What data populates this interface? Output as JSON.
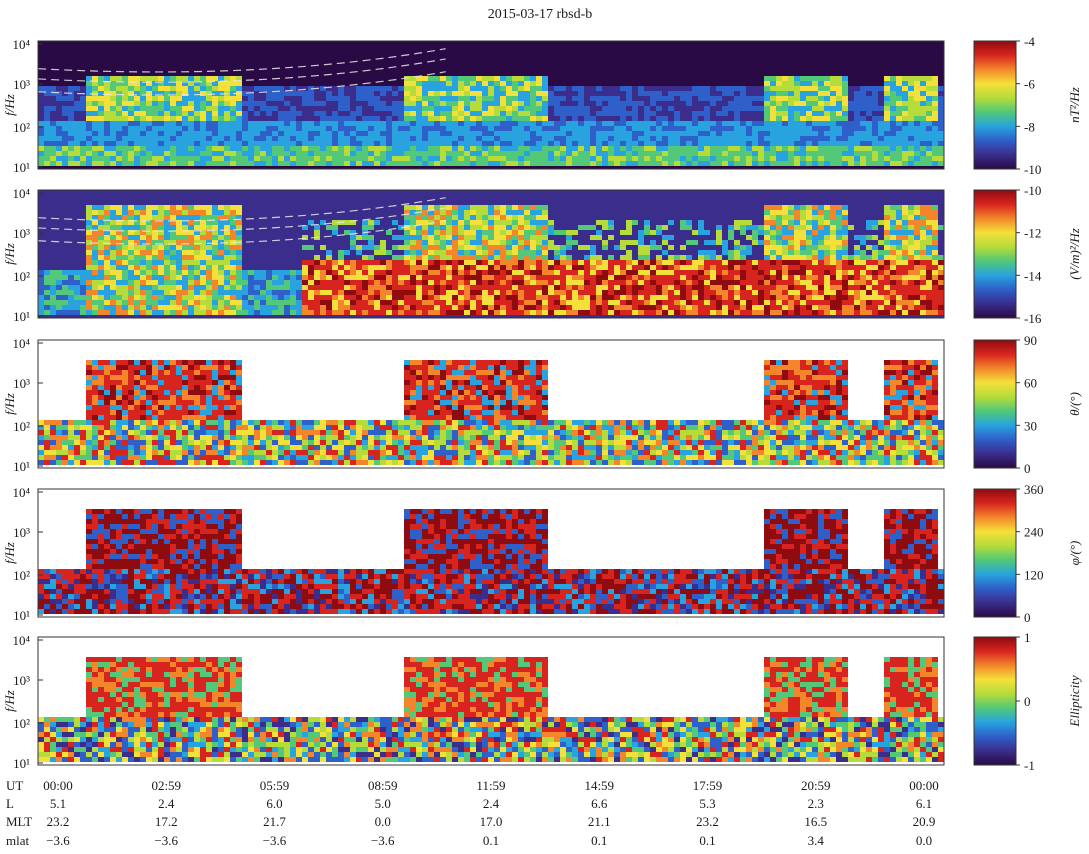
{
  "title": "2015-03-17  rbsd-b",
  "colors": {
    "colormap": [
      "#2a0a45",
      "#3a2d8c",
      "#2f5fc8",
      "#28a3df",
      "#52c878",
      "#b5dc3a",
      "#f4e03a",
      "#f3862a",
      "#d8241f",
      "#8e0b10"
    ]
  },
  "chart_data": [
    {
      "type": "heatmap",
      "panel": "spectral-power-magnetic",
      "ylabel": "f/Hz",
      "y_tick_labels": [
        "10⁴",
        "10³",
        "10²",
        "10¹"
      ],
      "y_range": [
        10,
        10000
      ],
      "y_scale": "log",
      "colorbar": {
        "label": "nT²/Hz",
        "ticks": [
          "-4",
          "-6",
          "-8",
          "-10"
        ],
        "range": [
          -10,
          -4
        ]
      },
      "frequency_overlays": "dashed electron gyrofrequency harmonics in upper band"
    },
    {
      "type": "heatmap",
      "panel": "spectral-power-electric",
      "ylabel": "f/Hz",
      "y_tick_labels": [
        "10⁴",
        "10³",
        "10²",
        "10¹"
      ],
      "y_range": [
        10,
        10000
      ],
      "y_scale": "log",
      "colorbar": {
        "label": "(V/m)²/Hz",
        "ticks": [
          "-10",
          "-12",
          "-14",
          "-16"
        ],
        "range": [
          -16,
          -10
        ]
      }
    },
    {
      "type": "heatmap",
      "panel": "wave-normal-angle",
      "ylabel": "f/Hz",
      "y_tick_labels": [
        "10⁴",
        "10³",
        "10²",
        "10¹"
      ],
      "y_range": [
        10,
        10000
      ],
      "y_scale": "log",
      "colorbar": {
        "label": "θ/(°)",
        "ticks": [
          "90",
          "60",
          "30",
          "0"
        ],
        "range": [
          0,
          90
        ]
      }
    },
    {
      "type": "heatmap",
      "panel": "azimuth-angle",
      "ylabel": "f/Hz",
      "y_tick_labels": [
        "10⁴",
        "10³",
        "10²",
        "10¹"
      ],
      "y_range": [
        10,
        10000
      ],
      "y_scale": "log",
      "colorbar": {
        "label": "φ/(°)",
        "ticks": [
          "360",
          "240",
          "120",
          "0"
        ],
        "range": [
          0,
          360
        ]
      }
    },
    {
      "type": "heatmap",
      "panel": "ellipticity",
      "ylabel": "f/Hz",
      "y_tick_labels": [
        "10⁴",
        "10³",
        "10²",
        "10¹"
      ],
      "y_range": [
        10,
        10000
      ],
      "y_scale": "log",
      "colorbar": {
        "label": "Ellipticity",
        "ticks": [
          "1",
          "0",
          "-1"
        ],
        "range": [
          -1,
          1
        ]
      }
    }
  ],
  "x_axis": {
    "rows": [
      {
        "label": "UT",
        "values": [
          "00:00",
          "02:59",
          "05:59",
          "08:59",
          "11:59",
          "14:59",
          "17:59",
          "20:59",
          "00:00"
        ]
      },
      {
        "label": "L",
        "values": [
          "5.1",
          "2.4",
          "6.0",
          "5.0",
          "2.4",
          "6.6",
          "5.3",
          "2.3",
          "6.1"
        ]
      },
      {
        "label": "MLT",
        "values": [
          "23.2",
          "17.2",
          "21.7",
          "0.0",
          "17.0",
          "21.1",
          "23.2",
          "16.5",
          "20.9"
        ]
      },
      {
        "label": "mlat",
        "values": [
          "−3.6",
          "−3.6",
          "−3.6",
          "−3.6",
          "0.1",
          "0.1",
          "0.1",
          "3.4",
          "0.0"
        ]
      }
    ]
  }
}
